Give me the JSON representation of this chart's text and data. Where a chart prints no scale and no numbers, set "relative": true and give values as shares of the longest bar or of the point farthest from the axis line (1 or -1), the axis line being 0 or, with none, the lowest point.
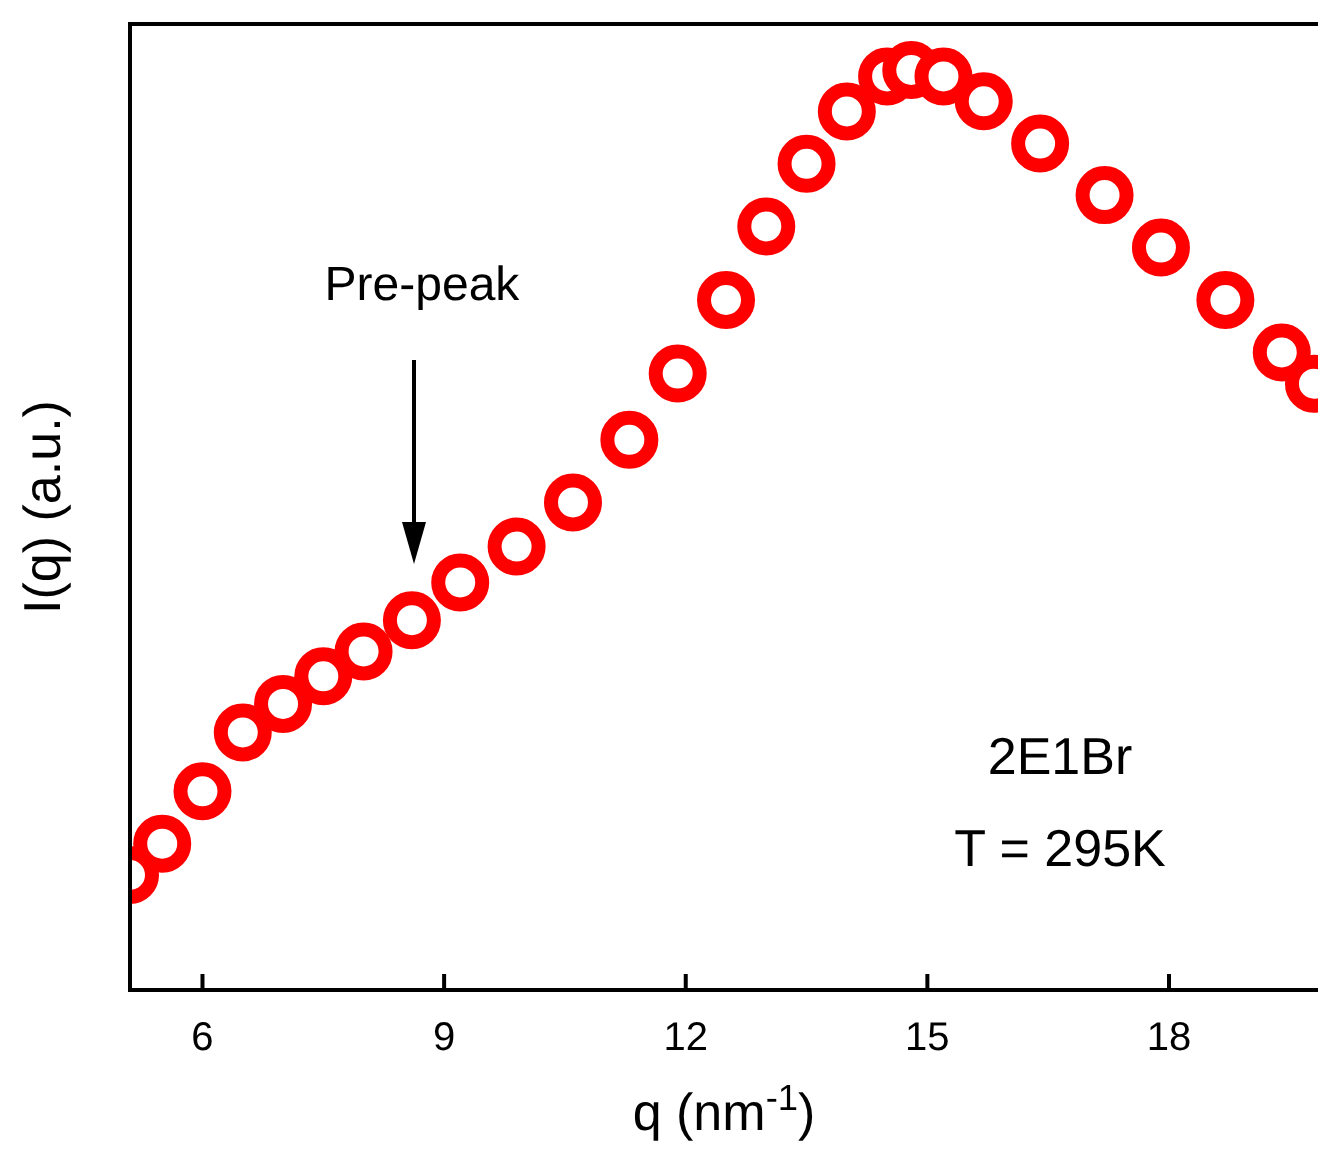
{
  "chart_data": {
    "type": "scatter",
    "xlabel": "q (nm$^{-1}$)",
    "ylabel": "I(q) (a.u.)",
    "relative": true,
    "tick_labels": "x",
    "marker": "circle",
    "xlim": [
      5.1,
      19.85
    ],
    "xticks": [
      6,
      9,
      12,
      15,
      18
    ],
    "x": [
      5.1,
      5.5,
      6,
      6.5,
      7,
      7.5,
      8,
      8.6,
      9.2,
      9.9,
      10.6,
      11.3,
      11.9,
      12.5,
      13.0,
      13.5,
      14.0,
      14.5,
      14.8,
      15.2,
      15.7,
      16.4,
      17.2,
      17.9,
      18.7,
      19.4,
      19.8
    ],
    "series": [
      {
        "color": "#ff0000",
        "values": [
          0.125,
          0.159,
          0.216,
          0.28,
          0.311,
          0.341,
          0.368,
          0.402,
          0.443,
          0.482,
          0.53,
          0.598,
          0.67,
          0.75,
          0.83,
          0.898,
          0.955,
          0.993,
          1,
          0.993,
          0.966,
          0.92,
          0.864,
          0.807,
          0.75,
          0.693,
          0.659
        ]
      }
    ],
    "annotations": [
      "Pre-peak",
      "2E1Br",
      "T = 295K"
    ]
  }
}
